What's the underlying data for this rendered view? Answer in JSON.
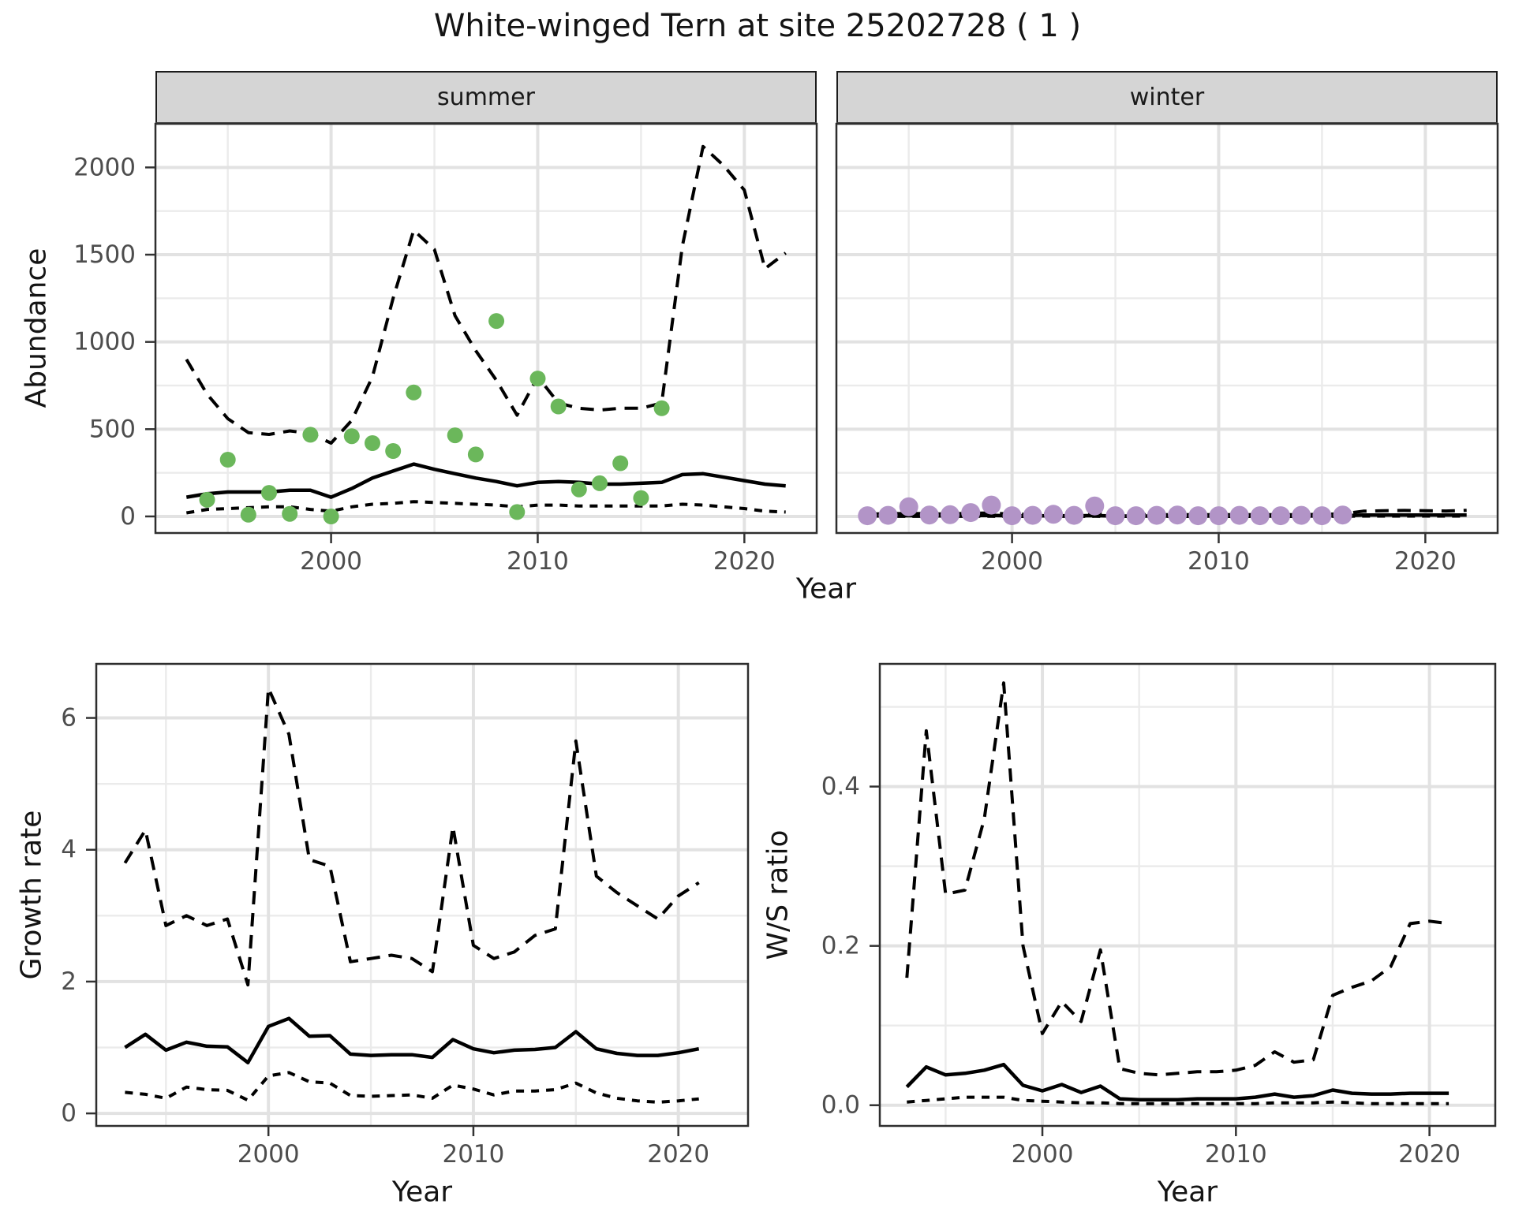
{
  "title": "White-winged Tern at site 25202728 ( 1 )",
  "top": {
    "ylabel": "Abundance",
    "xlabel": "Year",
    "facets": [
      {
        "label": "summer"
      },
      {
        "label": "winter"
      }
    ]
  },
  "bottom_left": {
    "ylabel": "Growth rate",
    "xlabel": "Year"
  },
  "bottom_right": {
    "ylabel": "W/S ratio",
    "xlabel": "Year"
  },
  "style": {
    "point_green": "#6BB75B",
    "point_purple": "#B294C7",
    "line": "#000000",
    "grid_major": "#E2E2E2",
    "grid_minor": "#EBEBEB",
    "panel_border": "#2E2E2E",
    "tick_mark": "#333333",
    "tick_text": "#4D4D4D",
    "strip_bg": "#D5D5D5"
  },
  "chart_data": [
    {
      "id": "abundance-summer",
      "type": "line",
      "facet": "summer",
      "xlabel": "Year",
      "ylabel": "Abundance",
      "xlim": [
        1991.5,
        2023.5
      ],
      "ylim": [
        -95,
        2250
      ],
      "xticks": {
        "major": [
          2000,
          2010,
          2020
        ],
        "labels": [
          "2000",
          "2010",
          "2020"
        ],
        "minor": [
          1995,
          2005,
          2015
        ]
      },
      "yticks": {
        "major": [
          0,
          500,
          1000,
          1500,
          2000
        ],
        "labels": [
          "0",
          "500",
          "1000",
          "1500",
          "2000"
        ],
        "minor": [
          250,
          750,
          1250,
          1750,
          2250
        ]
      },
      "years": [
        1993,
        1994,
        1995,
        1996,
        1997,
        1998,
        1999,
        2000,
        2001,
        2002,
        2003,
        2004,
        2005,
        2006,
        2007,
        2008,
        2009,
        2010,
        2011,
        2012,
        2013,
        2014,
        2015,
        2016,
        2017,
        2018,
        2019,
        2020,
        2021,
        2022
      ],
      "series": [
        {
          "name": "upper_ci",
          "linetype": "longdash",
          "values": [
            900,
            700,
            560,
            480,
            470,
            490,
            475,
            420,
            550,
            800,
            1250,
            1640,
            1530,
            1150,
            950,
            780,
            580,
            800,
            650,
            620,
            610,
            620,
            620,
            650,
            1550,
            2120,
            2010,
            1870,
            1420,
            1510
          ]
        },
        {
          "name": "median",
          "linetype": "solid",
          "values": [
            110,
            130,
            140,
            140,
            140,
            150,
            150,
            110,
            160,
            220,
            260,
            300,
            270,
            245,
            220,
            200,
            175,
            195,
            200,
            195,
            185,
            185,
            190,
            195,
            240,
            245,
            225,
            205,
            185,
            175
          ]
        },
        {
          "name": "lower_ci",
          "linetype": "shortdash",
          "values": [
            20,
            40,
            45,
            50,
            55,
            55,
            40,
            30,
            55,
            70,
            75,
            85,
            80,
            75,
            70,
            65,
            55,
            65,
            65,
            60,
            60,
            60,
            60,
            60,
            70,
            65,
            55,
            45,
            30,
            25
          ]
        }
      ],
      "points": {
        "name": "observed_counts",
        "color": "#6BB75B",
        "data": [
          [
            1994,
            95
          ],
          [
            1995,
            325
          ],
          [
            1996,
            10
          ],
          [
            1997,
            135
          ],
          [
            1998,
            15
          ],
          [
            1999,
            468
          ],
          [
            2000,
            0
          ],
          [
            2001,
            460
          ],
          [
            2002,
            420
          ],
          [
            2003,
            375
          ],
          [
            2004,
            710
          ],
          [
            2006,
            465
          ],
          [
            2007,
            355
          ],
          [
            2008,
            1120
          ],
          [
            2009,
            25
          ],
          [
            2010,
            790
          ],
          [
            2011,
            630
          ],
          [
            2012,
            155
          ],
          [
            2013,
            190
          ],
          [
            2014,
            305
          ],
          [
            2015,
            105
          ],
          [
            2016,
            620
          ]
        ]
      }
    },
    {
      "id": "abundance-winter",
      "type": "line",
      "facet": "winter",
      "xlabel": "Year",
      "ylabel": "Abundance",
      "xlim": [
        1991.5,
        2023.5
      ],
      "ylim": [
        -95,
        2250
      ],
      "xticks": {
        "major": [
          2000,
          2010,
          2020
        ],
        "labels": [
          "2000",
          "2010",
          "2020"
        ],
        "minor": [
          1995,
          2005,
          2015
        ]
      },
      "yticks": {
        "major": [
          0,
          500,
          1000,
          1500,
          2000
        ],
        "labels": [
          "0",
          "500",
          "1000",
          "1500",
          "2000"
        ],
        "minor": [
          250,
          750,
          1250,
          1750,
          2250
        ]
      },
      "years": [
        1993,
        1994,
        1995,
        1996,
        1997,
        1998,
        1999,
        2000,
        2001,
        2002,
        2003,
        2004,
        2005,
        2006,
        2007,
        2008,
        2009,
        2010,
        2011,
        2012,
        2013,
        2014,
        2015,
        2016,
        2017,
        2018,
        2019,
        2020,
        2021,
        2022
      ],
      "series": [
        {
          "name": "upper_ci",
          "linetype": "longdash",
          "values": [
            15,
            15,
            18,
            15,
            15,
            18,
            20,
            12,
            12,
            15,
            12,
            18,
            10,
            10,
            10,
            10,
            10,
            10,
            10,
            10,
            10,
            10,
            12,
            15,
            30,
            33,
            34,
            33,
            31,
            35
          ]
        },
        {
          "name": "median",
          "linetype": "solid",
          "values": [
            3,
            3,
            5,
            3,
            3,
            5,
            6,
            3,
            3,
            4,
            3,
            5,
            2,
            2,
            2,
            2,
            2,
            2,
            2,
            2,
            2,
            2,
            3,
            4,
            8,
            8,
            8,
            8,
            8,
            8
          ]
        },
        {
          "name": "lower_ci",
          "linetype": "shortdash",
          "values": [
            0,
            0,
            1,
            0,
            0,
            1,
            1,
            0,
            0,
            1,
            0,
            1,
            0,
            0,
            0,
            0,
            0,
            0,
            0,
            0,
            0,
            0,
            0,
            1,
            2,
            2,
            2,
            2,
            2,
            2
          ]
        }
      ],
      "points": {
        "name": "observed_counts",
        "color": "#B294C7",
        "data": [
          [
            1993,
            4
          ],
          [
            1994,
            6
          ],
          [
            1995,
            55
          ],
          [
            1996,
            8
          ],
          [
            1997,
            10
          ],
          [
            1998,
            22
          ],
          [
            1999,
            65
          ],
          [
            2000,
            4
          ],
          [
            2001,
            6
          ],
          [
            2002,
            12
          ],
          [
            2003,
            6
          ],
          [
            2004,
            60
          ],
          [
            2005,
            4
          ],
          [
            2006,
            4
          ],
          [
            2007,
            6
          ],
          [
            2008,
            8
          ],
          [
            2009,
            4
          ],
          [
            2010,
            4
          ],
          [
            2011,
            6
          ],
          [
            2012,
            4
          ],
          [
            2013,
            4
          ],
          [
            2014,
            6
          ],
          [
            2015,
            4
          ],
          [
            2016,
            8
          ]
        ]
      }
    },
    {
      "id": "growth-rate",
      "type": "line",
      "facet": null,
      "xlabel": "Year",
      "ylabel": "Growth rate",
      "xlim": [
        1991.6,
        2023.4
      ],
      "ylim": [
        -0.19,
        6.82
      ],
      "xticks": {
        "major": [
          2000,
          2010,
          2020
        ],
        "labels": [
          "2000",
          "2010",
          "2020"
        ],
        "minor": [
          1995,
          2005,
          2015
        ]
      },
      "yticks": {
        "major": [
          0,
          2,
          4,
          6
        ],
        "labels": [
          "0",
          "2",
          "4",
          "6"
        ],
        "minor": [
          1,
          3,
          5
        ]
      },
      "years": [
        1993,
        1994,
        1995,
        1996,
        1997,
        1998,
        1999,
        2000,
        2001,
        2002,
        2003,
        2004,
        2005,
        2006,
        2007,
        2008,
        2009,
        2010,
        2011,
        2012,
        2013,
        2014,
        2015,
        2016,
        2017,
        2018,
        2019,
        2020,
        2021
      ],
      "series": [
        {
          "name": "upper_ci",
          "linetype": "longdash",
          "values": [
            3.8,
            4.3,
            2.85,
            3.0,
            2.85,
            2.95,
            1.95,
            6.45,
            5.75,
            3.85,
            3.75,
            2.3,
            2.35,
            2.4,
            2.35,
            2.15,
            4.35,
            2.55,
            2.35,
            2.45,
            2.7,
            2.8,
            5.65,
            3.6,
            3.35,
            3.15,
            2.95,
            3.3,
            3.5
          ]
        },
        {
          "name": "median",
          "linetype": "solid",
          "values": [
            1.0,
            1.2,
            0.96,
            1.08,
            1.02,
            1.01,
            0.77,
            1.32,
            1.44,
            1.17,
            1.18,
            0.9,
            0.88,
            0.89,
            0.89,
            0.85,
            1.12,
            0.98,
            0.92,
            0.96,
            0.97,
            1.0,
            1.24,
            0.98,
            0.91,
            0.88,
            0.88,
            0.92,
            0.98
          ]
        },
        {
          "name": "lower_ci",
          "linetype": "shortdash",
          "values": [
            0.32,
            0.29,
            0.23,
            0.4,
            0.36,
            0.35,
            0.2,
            0.57,
            0.62,
            0.48,
            0.46,
            0.27,
            0.26,
            0.27,
            0.28,
            0.23,
            0.43,
            0.37,
            0.28,
            0.34,
            0.34,
            0.36,
            0.46,
            0.31,
            0.23,
            0.19,
            0.17,
            0.19,
            0.22
          ]
        }
      ],
      "points": null
    },
    {
      "id": "ws-ratio",
      "type": "line",
      "facet": null,
      "xlabel": "Year",
      "ylabel": "W/S ratio",
      "xlim": [
        1991.6,
        2023.4
      ],
      "ylim": [
        -0.026,
        0.554
      ],
      "xticks": {
        "major": [
          2000,
          2010,
          2020
        ],
        "labels": [
          "2000",
          "2010",
          "2020"
        ],
        "minor": [
          1995,
          2005,
          2015
        ]
      },
      "yticks": {
        "major": [
          0,
          0.2,
          0.4
        ],
        "labels": [
          "0.0",
          "0.2",
          "0.4"
        ],
        "minor": [
          0.1,
          0.3,
          0.5
        ]
      },
      "years": [
        1993,
        1994,
        1995,
        1996,
        1997,
        1998,
        1999,
        2000,
        2001,
        2002,
        2003,
        2004,
        2005,
        2006,
        2007,
        2008,
        2009,
        2010,
        2011,
        2012,
        2013,
        2014,
        2015,
        2016,
        2017,
        2018,
        2019,
        2020,
        2021
      ],
      "series": [
        {
          "name": "upper_ci",
          "linetype": "longdash",
          "values": [
            0.16,
            0.47,
            0.265,
            0.27,
            0.36,
            0.53,
            0.2,
            0.09,
            0.13,
            0.105,
            0.195,
            0.046,
            0.04,
            0.038,
            0.04,
            0.042,
            0.042,
            0.044,
            0.05,
            0.067,
            0.054,
            0.057,
            0.138,
            0.148,
            0.156,
            0.174,
            0.228,
            0.231,
            0.228
          ]
        },
        {
          "name": "median",
          "linetype": "solid",
          "values": [
            0.023,
            0.048,
            0.038,
            0.04,
            0.044,
            0.051,
            0.025,
            0.018,
            0.026,
            0.016,
            0.024,
            0.008,
            0.007,
            0.007,
            0.007,
            0.008,
            0.008,
            0.008,
            0.01,
            0.014,
            0.01,
            0.012,
            0.019,
            0.015,
            0.014,
            0.014,
            0.015,
            0.015,
            0.015
          ]
        },
        {
          "name": "lower_ci",
          "linetype": "shortdash",
          "values": [
            0.004,
            0.006,
            0.008,
            0.01,
            0.01,
            0.01,
            0.006,
            0.005,
            0.004,
            0.003,
            0.003,
            0.002,
            0.002,
            0.002,
            0.002,
            0.002,
            0.002,
            0.002,
            0.002,
            0.003,
            0.003,
            0.003,
            0.004,
            0.003,
            0.002,
            0.002,
            0.002,
            0.002,
            0.002
          ]
        }
      ],
      "points": null
    }
  ]
}
